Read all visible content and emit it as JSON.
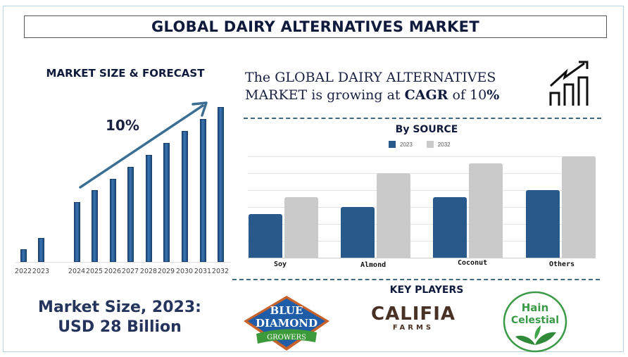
{
  "header": {
    "title": "GLOBAL DAIRY ALTERNATIVES MARKET"
  },
  "left_panel": {
    "heading": "MARKET SIZE & FORECAST",
    "growth_label": "10%",
    "market_size_line1": "Market Size, 2023:",
    "market_size_line2": "USD 28 Billion"
  },
  "cagr_statement": {
    "line1": "The GLOBAL DAIRY ALTERNATIVES",
    "line2_prefix": "MARKET is growing at ",
    "line2_bold": "CAGR",
    "line2_mid": " of 10",
    "line2_suffix": "%"
  },
  "source_section": {
    "heading": "By SOURCE"
  },
  "key_players": {
    "heading": "KEY PLAYERS",
    "logos": [
      {
        "name": "Blue Diamond Growers",
        "lines": [
          "BLUE",
          "DIAMOND",
          "GROWERS"
        ]
      },
      {
        "name": "Califia Farms",
        "lines": [
          "CALIFIA",
          "FARMS"
        ]
      },
      {
        "name": "Hain Celestial",
        "lines": [
          "Hain",
          "Celestial"
        ]
      }
    ]
  },
  "colors": {
    "navy": "#0f1a3c",
    "bar_blue": "#275a8a",
    "bar_gray": "#cacaca",
    "frame": "#b9d3e0",
    "dash": "#3e6b83"
  },
  "chart_data": [
    {
      "type": "bar",
      "title": "MARKET SIZE & FORECAST",
      "categories": [
        "2022",
        "2023",
        "2024",
        "2025",
        "2026",
        "2027",
        "2028",
        "2029",
        "2030",
        "2031",
        "2032"
      ],
      "values": [
        18,
        34,
        85,
        102,
        118,
        135,
        152,
        169,
        186,
        203,
        220
      ],
      "annotation": "10%",
      "xlabel": "",
      "ylabel": "",
      "grid": false,
      "note": "relative bar heights in px (no y-axis shown)"
    },
    {
      "type": "bar",
      "title": "By SOURCE",
      "categories": [
        "Soy",
        "Almond",
        "Coconut",
        "Others"
      ],
      "series": [
        {
          "name": "2023",
          "color": "#275a8a",
          "values": [
            2.6,
            3.0,
            3.6,
            4.0
          ]
        },
        {
          "name": "2032",
          "color": "#cacaca",
          "values": [
            3.6,
            5.0,
            5.6,
            6.0
          ]
        }
      ],
      "legend_position": "top",
      "grid": true,
      "ylim": [
        0,
        6
      ],
      "note": "values in gridline units; y-axis unlabeled"
    }
  ]
}
